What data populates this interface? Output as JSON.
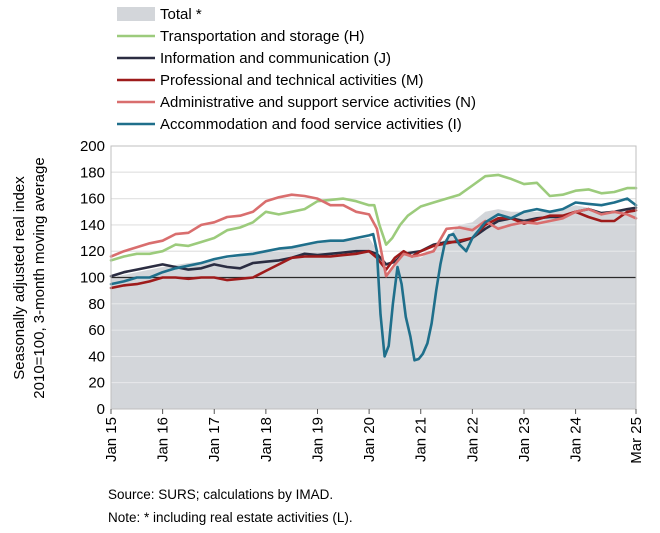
{
  "chart_data": {
    "type": "line",
    "ylabel_lines": [
      "Seasonally adjusted real index",
      "2010=100, 3-month moving average"
    ],
    "ylim": [
      0,
      200
    ],
    "yticks": [
      0,
      20,
      40,
      60,
      80,
      100,
      120,
      140,
      160,
      180,
      200
    ],
    "xlim": [
      2015.0,
      2025.17
    ],
    "xticks": [
      {
        "label": "Jan 15",
        "value": 2015.0
      },
      {
        "label": "Jan 16",
        "value": 2016.0
      },
      {
        "label": "Jan 17",
        "value": 2017.0
      },
      {
        "label": "Jan 18",
        "value": 2018.0
      },
      {
        "label": "Jan 19",
        "value": 2019.0
      },
      {
        "label": "Jan 20",
        "value": 2020.0
      },
      {
        "label": "Jan 21",
        "value": 2021.0
      },
      {
        "label": "Jan 22",
        "value": 2022.0
      },
      {
        "label": "Jan 23",
        "value": 2023.0
      },
      {
        "label": "Jan 24",
        "value": 2024.0
      },
      {
        "label": "Mar 25",
        "value": 2025.17
      }
    ],
    "reference_line": 100,
    "grid": true,
    "legend_position": "top",
    "area": {
      "name": "Total *",
      "color": "#d3d6da",
      "x": [
        2015.0,
        2015.5,
        2016.0,
        2016.5,
        2017.0,
        2017.5,
        2018.0,
        2018.5,
        2019.0,
        2019.5,
        2020.0,
        2020.17,
        2020.33,
        2020.5,
        2020.67,
        2020.83,
        2021.0,
        2021.25,
        2021.5,
        2021.75,
        2022.0,
        2022.25,
        2022.5,
        2022.75,
        2023.0,
        2023.25,
        2023.5,
        2023.75,
        2024.0,
        2024.25,
        2024.5,
        2024.75,
        2025.0,
        2025.17
      ],
      "values": [
        100,
        104,
        108,
        111,
        113,
        116,
        120,
        123,
        126,
        128,
        130,
        120,
        103,
        108,
        120,
        117,
        115,
        122,
        130,
        140,
        142,
        150,
        152,
        150,
        150,
        150,
        151,
        152,
        155,
        153,
        150,
        150,
        152,
        154
      ]
    },
    "series": [
      {
        "name": "Transportation and storage (H)",
        "color": "#9ccb7c",
        "x": [
          2015.0,
          2015.25,
          2015.5,
          2015.75,
          2016.0,
          2016.25,
          2016.5,
          2016.75,
          2017.0,
          2017.25,
          2017.5,
          2017.75,
          2018.0,
          2018.25,
          2018.5,
          2018.75,
          2019.0,
          2019.25,
          2019.5,
          2019.75,
          2020.0,
          2020.1,
          2020.2,
          2020.33,
          2020.45,
          2020.6,
          2020.75,
          2021.0,
          2021.25,
          2021.5,
          2021.75,
          2022.0,
          2022.25,
          2022.5,
          2022.75,
          2023.0,
          2023.25,
          2023.5,
          2023.75,
          2024.0,
          2024.25,
          2024.5,
          2024.75,
          2025.0,
          2025.17
        ],
        "values": [
          113,
          116,
          118,
          118,
          120,
          125,
          124,
          127,
          130,
          136,
          138,
          142,
          150,
          148,
          150,
          152,
          158,
          159,
          160,
          158,
          155,
          155,
          140,
          125,
          130,
          140,
          147,
          154,
          157,
          160,
          163,
          170,
          177,
          178,
          175,
          171,
          172,
          162,
          163,
          166,
          167,
          164,
          165,
          168,
          168
        ]
      },
      {
        "name": "Information and communication (J)",
        "color": "#2b2d42",
        "x": [
          2015.0,
          2015.25,
          2015.5,
          2015.75,
          2016.0,
          2016.25,
          2016.5,
          2016.75,
          2017.0,
          2017.25,
          2017.5,
          2017.75,
          2018.0,
          2018.25,
          2018.5,
          2018.75,
          2019.0,
          2019.25,
          2019.5,
          2019.75,
          2020.0,
          2020.15,
          2020.33,
          2020.5,
          2020.67,
          2020.83,
          2021.0,
          2021.25,
          2021.5,
          2021.75,
          2022.0,
          2022.25,
          2022.5,
          2022.75,
          2023.0,
          2023.25,
          2023.5,
          2023.75,
          2024.0,
          2024.25,
          2024.5,
          2024.75,
          2025.0,
          2025.17
        ],
        "values": [
          101,
          104,
          106,
          108,
          110,
          108,
          106,
          107,
          110,
          108,
          107,
          111,
          112,
          113,
          115,
          118,
          117,
          118,
          119,
          120,
          120,
          118,
          110,
          112,
          118,
          119,
          120,
          125,
          127,
          127,
          130,
          137,
          143,
          145,
          143,
          145,
          146,
          146,
          150,
          152,
          149,
          150,
          152,
          153
        ]
      },
      {
        "name": "Professional and technical activities (M)",
        "color": "#9e1b1b",
        "x": [
          2015.0,
          2015.25,
          2015.5,
          2015.75,
          2016.0,
          2016.25,
          2016.5,
          2016.75,
          2017.0,
          2017.25,
          2017.5,
          2017.75,
          2018.0,
          2018.25,
          2018.5,
          2018.75,
          2019.0,
          2019.25,
          2019.5,
          2019.75,
          2020.0,
          2020.15,
          2020.33,
          2020.5,
          2020.67,
          2020.83,
          2021.0,
          2021.25,
          2021.5,
          2021.75,
          2022.0,
          2022.25,
          2022.5,
          2022.75,
          2023.0,
          2023.25,
          2023.5,
          2023.75,
          2024.0,
          2024.25,
          2024.5,
          2024.75,
          2025.0,
          2025.17
        ],
        "values": [
          92,
          94,
          95,
          97,
          100,
          100,
          99,
          100,
          100,
          98,
          99,
          100,
          105,
          110,
          115,
          116,
          116,
          116,
          117,
          118,
          120,
          115,
          106,
          115,
          120,
          116,
          120,
          124,
          126,
          128,
          130,
          140,
          145,
          145,
          141,
          144,
          147,
          147,
          150,
          146,
          143,
          143,
          150,
          151
        ]
      },
      {
        "name": "Administrative and support service activities (N)",
        "color": "#d96e6e",
        "x": [
          2015.0,
          2015.25,
          2015.5,
          2015.75,
          2016.0,
          2016.25,
          2016.5,
          2016.75,
          2017.0,
          2017.25,
          2017.5,
          2017.75,
          2018.0,
          2018.25,
          2018.5,
          2018.75,
          2019.0,
          2019.25,
          2019.5,
          2019.75,
          2020.0,
          2020.15,
          2020.33,
          2020.5,
          2020.67,
          2020.83,
          2021.0,
          2021.25,
          2021.5,
          2021.75,
          2022.0,
          2022.25,
          2022.5,
          2022.75,
          2023.0,
          2023.25,
          2023.5,
          2023.75,
          2024.0,
          2024.25,
          2024.5,
          2024.75,
          2025.0,
          2025.17
        ],
        "values": [
          116,
          120,
          123,
          126,
          128,
          133,
          134,
          140,
          142,
          146,
          147,
          150,
          158,
          161,
          163,
          162,
          160,
          155,
          155,
          150,
          148,
          137,
          101,
          110,
          118,
          116,
          117,
          120,
          137,
          138,
          136,
          143,
          137,
          140,
          142,
          141,
          143,
          145,
          150,
          152,
          148,
          150,
          148,
          145
        ]
      },
      {
        "name": "Accommodation and food service activities (I)",
        "color": "#1f6f8b",
        "x": [
          2015.0,
          2015.25,
          2015.5,
          2015.75,
          2016.0,
          2016.25,
          2016.5,
          2016.75,
          2017.0,
          2017.25,
          2017.5,
          2017.75,
          2018.0,
          2018.25,
          2018.5,
          2018.75,
          2019.0,
          2019.25,
          2019.5,
          2019.75,
          2020.0,
          2020.08,
          2020.15,
          2020.22,
          2020.3,
          2020.38,
          2020.46,
          2020.55,
          2020.63,
          2020.71,
          2020.8,
          2020.88,
          2020.96,
          2021.04,
          2021.13,
          2021.21,
          2021.3,
          2021.38,
          2021.46,
          2021.55,
          2021.63,
          2021.75,
          2021.88,
          2022.0,
          2022.25,
          2022.5,
          2022.75,
          2023.0,
          2023.25,
          2023.5,
          2023.75,
          2024.0,
          2024.25,
          2024.5,
          2024.75,
          2025.0,
          2025.17
        ],
        "values": [
          95,
          97,
          100,
          100,
          104,
          107,
          109,
          111,
          114,
          116,
          117,
          118,
          120,
          122,
          123,
          125,
          127,
          128,
          128,
          130,
          132,
          133,
          120,
          72,
          40,
          48,
          80,
          108,
          95,
          70,
          55,
          37,
          38,
          42,
          50,
          65,
          90,
          110,
          125,
          132,
          133,
          125,
          120,
          130,
          142,
          148,
          145,
          150,
          152,
          150,
          152,
          157,
          156,
          155,
          157,
          160,
          155
        ]
      }
    ],
    "source": "Source:  SURS; calculations by IMAD.",
    "note": "Note: * including real estate activities (L)."
  }
}
